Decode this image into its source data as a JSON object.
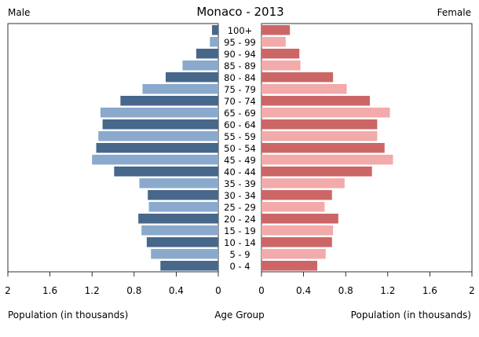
{
  "chart_data": {
    "type": "bar",
    "title": "Monaco - 2013",
    "left_label": "Male",
    "right_label": "Female",
    "xlabel_left": "Population (in thousands)",
    "xlabel_center": "Age Group",
    "xlabel_right": "Population (in thousands)",
    "xlim": [
      0,
      2
    ],
    "x_ticks": [
      "2",
      "1.6",
      "1.2",
      "0.8",
      "0.4",
      "0"
    ],
    "x_ticks_right": [
      "0",
      "0.4",
      "0.8",
      "1.2",
      "1.6",
      "2"
    ],
    "categories": [
      "100+",
      "95 - 99",
      "90 - 94",
      "85 - 89",
      "80 - 84",
      "75 - 79",
      "70 - 74",
      "65 - 69",
      "60 - 64",
      "55 - 59",
      "50 - 54",
      "45 - 49",
      "40 - 44",
      "35 - 39",
      "30 - 34",
      "25 - 29",
      "20 - 24",
      "15 - 19",
      "10 - 14",
      "5 - 9",
      "0 - 4"
    ],
    "series": [
      {
        "name": "Male",
        "values": [
          0.06,
          0.08,
          0.21,
          0.34,
          0.5,
          0.72,
          0.93,
          1.12,
          1.1,
          1.14,
          1.16,
          1.2,
          0.99,
          0.75,
          0.67,
          0.66,
          0.76,
          0.73,
          0.68,
          0.64,
          0.55
        ]
      },
      {
        "name": "Female",
        "values": [
          0.27,
          0.23,
          0.36,
          0.37,
          0.68,
          0.81,
          1.03,
          1.22,
          1.1,
          1.1,
          1.17,
          1.25,
          1.05,
          0.79,
          0.67,
          0.6,
          0.73,
          0.68,
          0.67,
          0.61,
          0.53
        ]
      }
    ],
    "colors": {
      "male_dark": "#47678b",
      "male_light": "#8aa9cd",
      "female_dark": "#cc6666",
      "female_light": "#f2aaaa"
    }
  }
}
